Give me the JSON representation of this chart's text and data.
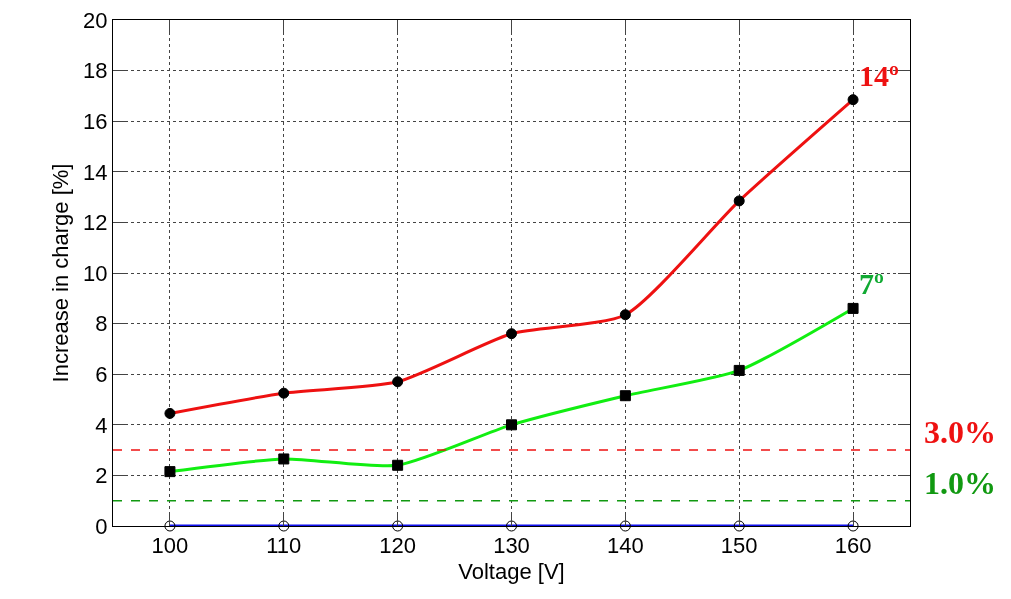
{
  "chart_data": {
    "type": "line",
    "xlabel": "Voltage [V]",
    "ylabel": "Increase in charge [%]",
    "x": [
      100,
      110,
      120,
      130,
      140,
      150,
      160
    ],
    "series": [
      {
        "name": "14º",
        "color": "#ee1111",
        "marker": "circle",
        "values": [
          4.45,
          5.25,
          5.7,
          7.6,
          8.35,
          12.85,
          16.85
        ]
      },
      {
        "name": "7º",
        "color": "#11ee11",
        "marker": "square",
        "values": [
          2.15,
          2.65,
          2.4,
          4.0,
          5.15,
          6.15,
          8.6
        ]
      },
      {
        "color": "#1111ee",
        "marker": "circle-open",
        "values": [
          0,
          0,
          0,
          0,
          0,
          0,
          0
        ]
      }
    ],
    "xlim": [
      95,
      165
    ],
    "xticks": [
      100,
      110,
      120,
      130,
      140,
      150,
      160
    ],
    "ylim": [
      0,
      20
    ],
    "yticks": [
      0,
      2,
      4,
      6,
      8,
      10,
      12,
      14,
      16,
      18,
      20
    ],
    "grid": true,
    "legend": false,
    "line_style": "solid",
    "ref_lines": [
      {
        "axis": "y",
        "value": 3.0,
        "label": "3.0%",
        "color": "#ee1111",
        "line_style": "dashed"
      },
      {
        "axis": "y",
        "value": 1.0,
        "label": "1.0%",
        "color": "#119911",
        "line_style": "dashed"
      }
    ]
  }
}
